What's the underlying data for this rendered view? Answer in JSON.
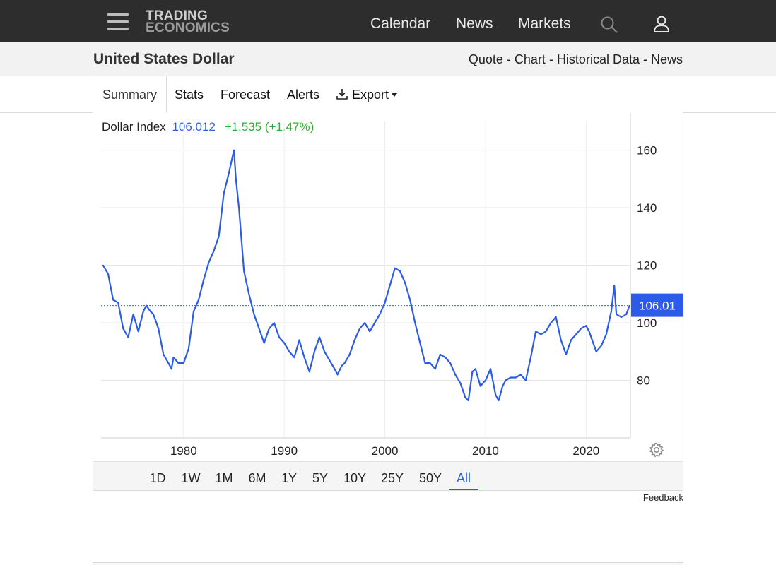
{
  "nav": {
    "logo_line1": "TRADING",
    "logo_line2": "ECONOMICS",
    "links": [
      "Calendar",
      "News",
      "Markets"
    ],
    "icons": [
      "menu-icon",
      "search-icon",
      "user-icon"
    ]
  },
  "header": {
    "title": "United States Dollar",
    "quick_links": [
      "Quote",
      "Chart",
      "Historical Data",
      "News"
    ],
    "separator": "-"
  },
  "tabs": {
    "items": [
      "Summary",
      "Stats",
      "Forecast",
      "Alerts",
      "Export"
    ],
    "active": "Summary"
  },
  "quote": {
    "name": "Dollar Index",
    "value": "106.012",
    "change": "+1.535 (+1.47%)"
  },
  "ranges": {
    "items": [
      "1D",
      "1W",
      "1M",
      "6M",
      "1Y",
      "5Y",
      "10Y",
      "25Y",
      "50Y",
      "All"
    ],
    "active": "All"
  },
  "feedback_label": "Feedback",
  "colors": {
    "line": "#2c5bea",
    "change_positive": "#2bb12b",
    "topbar": "#2d2d2d"
  },
  "chart_data": {
    "type": "line",
    "title": "",
    "xlabel": "",
    "ylabel": "",
    "x_ticks": [
      "1980",
      "1990",
      "2000",
      "2010",
      "2020"
    ],
    "y_ticks": [
      80,
      100,
      120,
      140,
      160
    ],
    "xlim": [
      1971.8,
      2024.4
    ],
    "ylim": [
      60,
      170
    ],
    "grid": true,
    "last_value_label": "106.01",
    "reference_line": 106.01,
    "series": [
      {
        "name": "",
        "x": [
          1972.0,
          1972.5,
          1973.0,
          1973.5,
          1974.0,
          1974.5,
          1975.0,
          1975.5,
          1976.0,
          1976.3,
          1976.7,
          1977.0,
          1977.5,
          1978.0,
          1978.5,
          1978.8,
          1979.0,
          1979.5,
          1980.0,
          1980.5,
          1981.0,
          1981.5,
          1982.0,
          1982.5,
          1983.0,
          1983.5,
          1984.0,
          1984.5,
          1985.0,
          1985.2,
          1985.5,
          1986.0,
          1986.5,
          1987.0,
          1987.5,
          1988.0,
          1988.5,
          1989.0,
          1989.5,
          1990.0,
          1990.5,
          1991.0,
          1991.5,
          1992.0,
          1992.5,
          1993.0,
          1993.5,
          1994.0,
          1994.5,
          1995.0,
          1995.3,
          1995.7,
          1996.0,
          1996.5,
          1997.0,
          1997.5,
          1998.0,
          1998.5,
          1999.0,
          1999.5,
          2000.0,
          2000.5,
          2001.0,
          2001.5,
          2002.0,
          2002.5,
          2003.0,
          2003.5,
          2004.0,
          2004.5,
          2005.0,
          2005.5,
          2006.0,
          2006.5,
          2007.0,
          2007.5,
          2008.0,
          2008.3,
          2008.7,
          2009.0,
          2009.5,
          2010.0,
          2010.5,
          2011.0,
          2011.3,
          2011.7,
          2012.0,
          2012.5,
          2013.0,
          2013.5,
          2014.0,
          2014.5,
          2015.0,
          2015.5,
          2016.0,
          2016.5,
          2017.0,
          2017.5,
          2018.0,
          2018.5,
          2019.0,
          2019.5,
          2020.0,
          2020.3,
          2020.7,
          2021.0,
          2021.5,
          2022.0,
          2022.5,
          2022.8,
          2023.0,
          2023.5,
          2024.0,
          2024.3
        ],
        "y": [
          120,
          117,
          108,
          107,
          98,
          95,
          103,
          97,
          104,
          106,
          104,
          103,
          98,
          89,
          86,
          84,
          88,
          86,
          86,
          91,
          104,
          108,
          115,
          121,
          125,
          130,
          145,
          152,
          160,
          150,
          140,
          118,
          110,
          103,
          98,
          93,
          98,
          100,
          95,
          93,
          90,
          88,
          94,
          88,
          83,
          90,
          95,
          90,
          87,
          84,
          82,
          85,
          86,
          89,
          94,
          98,
          100,
          97,
          100,
          103,
          107,
          113,
          119,
          118,
          114,
          108,
          100,
          93,
          86,
          86,
          84,
          89,
          88,
          86,
          82,
          79,
          74,
          73,
          83,
          84,
          78,
          80,
          84,
          75,
          73,
          78,
          80,
          81,
          81,
          82,
          80,
          88,
          97,
          96,
          97,
          100,
          102,
          94,
          89,
          94,
          96,
          98,
          99,
          97,
          93,
          90,
          92,
          96,
          104,
          113,
          103,
          102,
          103,
          106
        ]
      }
    ]
  }
}
